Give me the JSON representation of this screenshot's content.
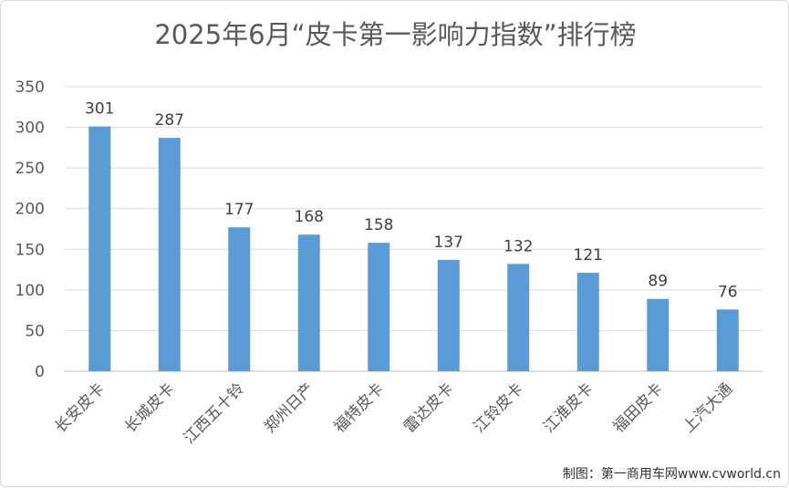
{
  "chart_data": {
    "type": "bar",
    "title": "2025年6月“皮卡第一影响力指数”排行榜",
    "categories": [
      "长安皮卡",
      "长城皮卡",
      "江西五十铃",
      "郑州日产",
      "福特皮卡",
      "雷达皮卡",
      "江铃皮卡",
      "江淮皮卡",
      "福田皮卡",
      "上汽大通"
    ],
    "values": [
      301,
      287,
      177,
      168,
      158,
      137,
      132,
      121,
      89,
      76
    ],
    "ylim": [
      0,
      350
    ],
    "yticks": [
      0,
      50,
      100,
      150,
      200,
      250,
      300,
      350
    ],
    "grid": true,
    "legend": "none",
    "bar_color": "#5b9bd5"
  },
  "credit": "制图：第一商用车网www.cvworld.cn"
}
